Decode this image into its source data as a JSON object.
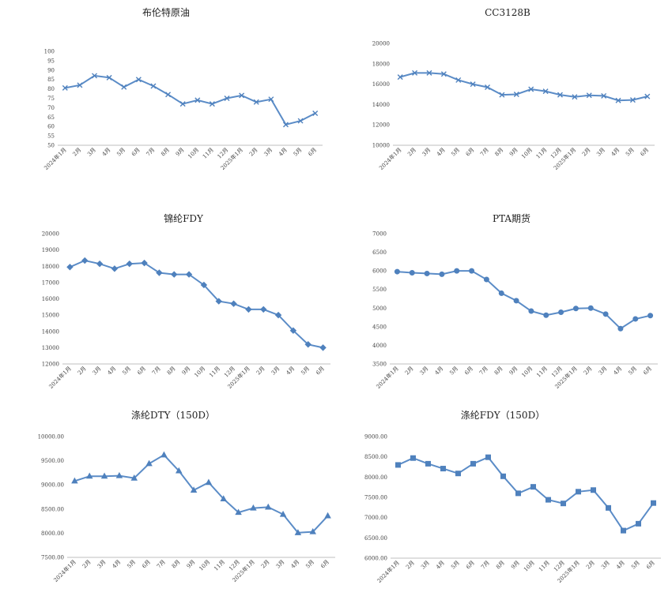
{
  "chart_data": [
    {
      "type": "line",
      "title": "布伦特原油",
      "marker": "x",
      "categories": [
        "2024年1月",
        "2月",
        "3月",
        "4月",
        "5月",
        "6月",
        "7月",
        "8月",
        "9月",
        "10月",
        "11月",
        "12月",
        "2025年1月",
        "2月",
        "3月",
        "4月",
        "5月",
        "6月"
      ],
      "values": [
        80.5,
        82,
        87,
        86,
        81,
        85,
        81.5,
        77,
        72,
        74,
        72,
        75,
        76.5,
        73,
        74.5,
        61,
        63,
        67
      ],
      "ylim": [
        50,
        100
      ],
      "yticks": [
        "50",
        "55",
        "60",
        "65",
        "70",
        "75",
        "80",
        "85",
        "90",
        "95",
        "100"
      ],
      "xlabel": "",
      "ylabel": "",
      "grid": false
    },
    {
      "type": "line",
      "title": "CC3128B",
      "marker": "x",
      "categories": [
        "2024年1月",
        "2月",
        "3月",
        "4月",
        "5月",
        "6月",
        "7月",
        "8月",
        "9月",
        "10月",
        "11月",
        "12月",
        "2025年1月",
        "2月",
        "3月",
        "4月",
        "5月",
        "6月"
      ],
      "values": [
        16700,
        17100,
        17100,
        17000,
        16400,
        16000,
        15700,
        14950,
        15000,
        15500,
        15300,
        14950,
        14750,
        14900,
        14850,
        14400,
        14450,
        14800
      ],
      "ylim": [
        10000,
        20000
      ],
      "yticks": [
        "10000",
        "12000",
        "14000",
        "16000",
        "18000",
        "20000"
      ],
      "xlabel": "",
      "ylabel": "",
      "grid": false
    },
    {
      "type": "line",
      "title": "锦纶FDY",
      "marker": "diamond",
      "categories": [
        "2024年1月",
        "2月",
        "3月",
        "4月",
        "5月",
        "6月",
        "7月",
        "8月",
        "9月",
        "10月",
        "11月",
        "12月",
        "2025年1月",
        "2月",
        "3月",
        "4月",
        "5月",
        "6月"
      ],
      "values": [
        17950,
        18350,
        18150,
        17850,
        18150,
        18200,
        17600,
        17500,
        17500,
        16850,
        15850,
        15700,
        15350,
        15350,
        15000,
        14050,
        13200,
        13000
      ],
      "ylim": [
        12000,
        20000
      ],
      "yticks": [
        "12000",
        "13000",
        "14000",
        "15000",
        "16000",
        "17000",
        "18000",
        "19000",
        "20000"
      ],
      "xlabel": "",
      "ylabel": "",
      "grid": false
    },
    {
      "type": "line",
      "title": "PTA期货",
      "marker": "circle",
      "categories": [
        "2024年1月",
        "2月",
        "3月",
        "4月",
        "5月",
        "6月",
        "7月",
        "8月",
        "9月",
        "10月",
        "11月",
        "12月",
        "2025年1月",
        "2月",
        "3月",
        "4月",
        "5月",
        "6月"
      ],
      "values": [
        5980,
        5950,
        5930,
        5910,
        6000,
        6000,
        5770,
        5400,
        5200,
        4920,
        4810,
        4890,
        4990,
        5000,
        4840,
        4450,
        4710,
        4800
      ],
      "ylim": [
        3500,
        7000
      ],
      "yticks": [
        "3500",
        "4000",
        "4500",
        "5000",
        "5500",
        "6000",
        "6500",
        "7000"
      ],
      "xlabel": "",
      "ylabel": "",
      "grid": false
    },
    {
      "type": "line",
      "title": "涤纶DTY（150D）",
      "marker": "triangle",
      "categories": [
        "2024年1月",
        "2月",
        "3月",
        "4月",
        "5月",
        "6月",
        "7月",
        "8月",
        "9月",
        "10月",
        "11月",
        "12月",
        "2025年1月",
        "2月",
        "3月",
        "4月",
        "5月",
        "6月"
      ],
      "values": [
        9080,
        9180,
        9180,
        9190,
        9140,
        9440,
        9620,
        9290,
        8890,
        9050,
        8710,
        8430,
        8520,
        8540,
        8390,
        8010,
        8030,
        8360
      ],
      "ylim": [
        7500,
        10000
      ],
      "yticks": [
        "7500.00",
        "8000.00",
        "8500.00",
        "9000.00",
        "9500.00",
        "10000.00"
      ],
      "xlabel": "",
      "ylabel": "",
      "grid": false
    },
    {
      "type": "line",
      "title": "涤纶FDY（150D）",
      "marker": "square",
      "categories": [
        "2024年1月",
        "2月",
        "3月",
        "4月",
        "5月",
        "6月",
        "7月",
        "8月",
        "9月",
        "10月",
        "11月",
        "12月",
        "2025年1月",
        "2月",
        "3月",
        "4月",
        "5月",
        "6月"
      ],
      "values": [
        8300,
        8470,
        8330,
        8210,
        8090,
        8330,
        8490,
        8020,
        7600,
        7760,
        7440,
        7350,
        7640,
        7680,
        7240,
        6680,
        6850,
        7360
      ],
      "ylim": [
        6000,
        9000
      ],
      "yticks": [
        "6000.00",
        "6500.00",
        "7000.00",
        "7500.00",
        "8000.00",
        "8500.00",
        "9000.00"
      ],
      "xlabel": "",
      "ylabel": "",
      "grid": false
    }
  ],
  "colors": {
    "line": "#5b8cc7",
    "marker": "#4f81bd",
    "axis": "#bfbfbf"
  }
}
